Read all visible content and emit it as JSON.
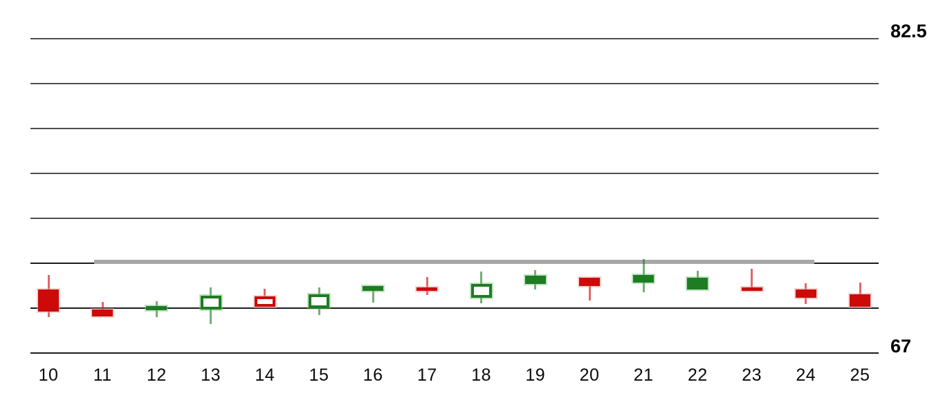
{
  "chart_data": {
    "type": "candlestick",
    "title": "",
    "xlabel": "",
    "ylabel": "",
    "legend": "none",
    "grid": "horizontal-only",
    "x_labels": [
      "10",
      "11",
      "12",
      "13",
      "14",
      "15",
      "16",
      "17",
      "18",
      "19",
      "20",
      "21",
      "22",
      "23",
      "24",
      "25"
    ],
    "y_axis": {
      "side": "right",
      "max": 82.5,
      "min": 67,
      "max_label": "82.5",
      "min_label": "67",
      "gridline_count": 8
    },
    "overlay_line": {
      "description": "thick gray horizontal line across candles 11 through 24",
      "price": 71.5,
      "start_x_label": "11",
      "end_x_label": "24",
      "color": "#a7a7a7"
    },
    "colors": {
      "up": "#1e7c23",
      "down": "#cc0a0a",
      "grid": "#4f4f4f",
      "axis_text": "#000000"
    },
    "candles": [
      {
        "x": "10",
        "open": 70.12,
        "high": 70.84,
        "low": 68.77,
        "close": 69.03,
        "direction": "down",
        "body": "filled"
      },
      {
        "x": "11",
        "open": 69.16,
        "high": 69.51,
        "low": 68.79,
        "close": 68.79,
        "direction": "down",
        "body": "filled"
      },
      {
        "x": "12",
        "open": 69.11,
        "high": 69.54,
        "low": 68.76,
        "close": 69.32,
        "direction": "up",
        "body": "filled"
      },
      {
        "x": "13",
        "open": 69.13,
        "high": 70.24,
        "low": 68.42,
        "close": 69.83,
        "direction": "up",
        "body": "hollow"
      },
      {
        "x": "14",
        "open": 69.8,
        "high": 70.17,
        "low": 69.27,
        "close": 69.27,
        "direction": "down",
        "body": "hollow"
      },
      {
        "x": "15",
        "open": 69.21,
        "high": 70.22,
        "low": 68.88,
        "close": 69.9,
        "direction": "up",
        "body": "hollow"
      },
      {
        "x": "16",
        "open": 70.08,
        "high": 70.29,
        "low": 69.49,
        "close": 70.29,
        "direction": "up",
        "body": "filled"
      },
      {
        "x": "17",
        "open": 70.24,
        "high": 70.75,
        "low": 69.85,
        "close": 70.05,
        "direction": "down",
        "body": "filled"
      },
      {
        "x": "18",
        "open": 69.71,
        "high": 71.02,
        "low": 69.44,
        "close": 70.42,
        "direction": "up",
        "body": "hollow"
      },
      {
        "x": "19",
        "open": 70.41,
        "high": 71.09,
        "low": 70.14,
        "close": 70.82,
        "direction": "up",
        "body": "filled"
      },
      {
        "x": "20",
        "open": 70.73,
        "high": 70.73,
        "low": 69.59,
        "close": 70.32,
        "direction": "down",
        "body": "filled"
      },
      {
        "x": "21",
        "open": 70.46,
        "high": 71.65,
        "low": 70.0,
        "close": 70.85,
        "direction": "up",
        "body": "filled"
      },
      {
        "x": "22",
        "open": 70.12,
        "high": 71.04,
        "low": 70.12,
        "close": 70.73,
        "direction": "up",
        "body": "filled"
      },
      {
        "x": "23",
        "open": 70.24,
        "high": 71.14,
        "low": 70.08,
        "close": 70.08,
        "direction": "down",
        "body": "filled"
      },
      {
        "x": "24",
        "open": 70.12,
        "high": 70.44,
        "low": 69.42,
        "close": 69.71,
        "direction": "down",
        "body": "filled"
      },
      {
        "x": "25",
        "open": 69.9,
        "high": 70.49,
        "low": 69.28,
        "close": 69.28,
        "direction": "down",
        "body": "filled"
      }
    ]
  }
}
